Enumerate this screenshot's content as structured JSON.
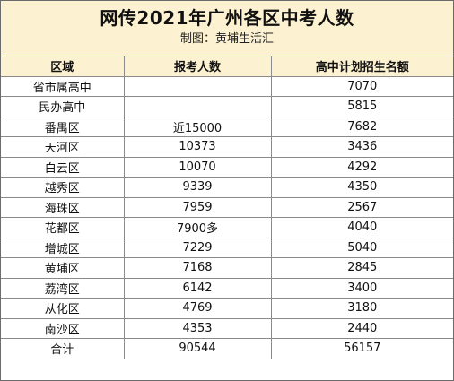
{
  "header": {
    "title": "网传2021年广州各区中考人数",
    "subtitle": "制图：黄埔生活汇"
  },
  "table": {
    "columns": [
      "区域",
      "报考人数",
      "高中计划招生名额"
    ],
    "rows": [
      [
        "省市属高中",
        "",
        "7070"
      ],
      [
        "民办高中",
        "",
        "5815"
      ],
      [
        "番禺区",
        "近15000",
        "7682"
      ],
      [
        "天河区",
        "10373",
        "3436"
      ],
      [
        "白云区",
        "10070",
        "4292"
      ],
      [
        "越秀区",
        "9339",
        "4350"
      ],
      [
        "海珠区",
        "7959",
        "2567"
      ],
      [
        "花都区",
        "7900多",
        "4040"
      ],
      [
        "增城区",
        "7229",
        "5040"
      ],
      [
        "黄埔区",
        "7168",
        "2845"
      ],
      [
        "荔湾区",
        "6142",
        "3400"
      ],
      [
        "从化区",
        "4769",
        "3180"
      ],
      [
        "南沙区",
        "4353",
        "2440"
      ],
      [
        "合计",
        "90544",
        "56157"
      ]
    ]
  }
}
